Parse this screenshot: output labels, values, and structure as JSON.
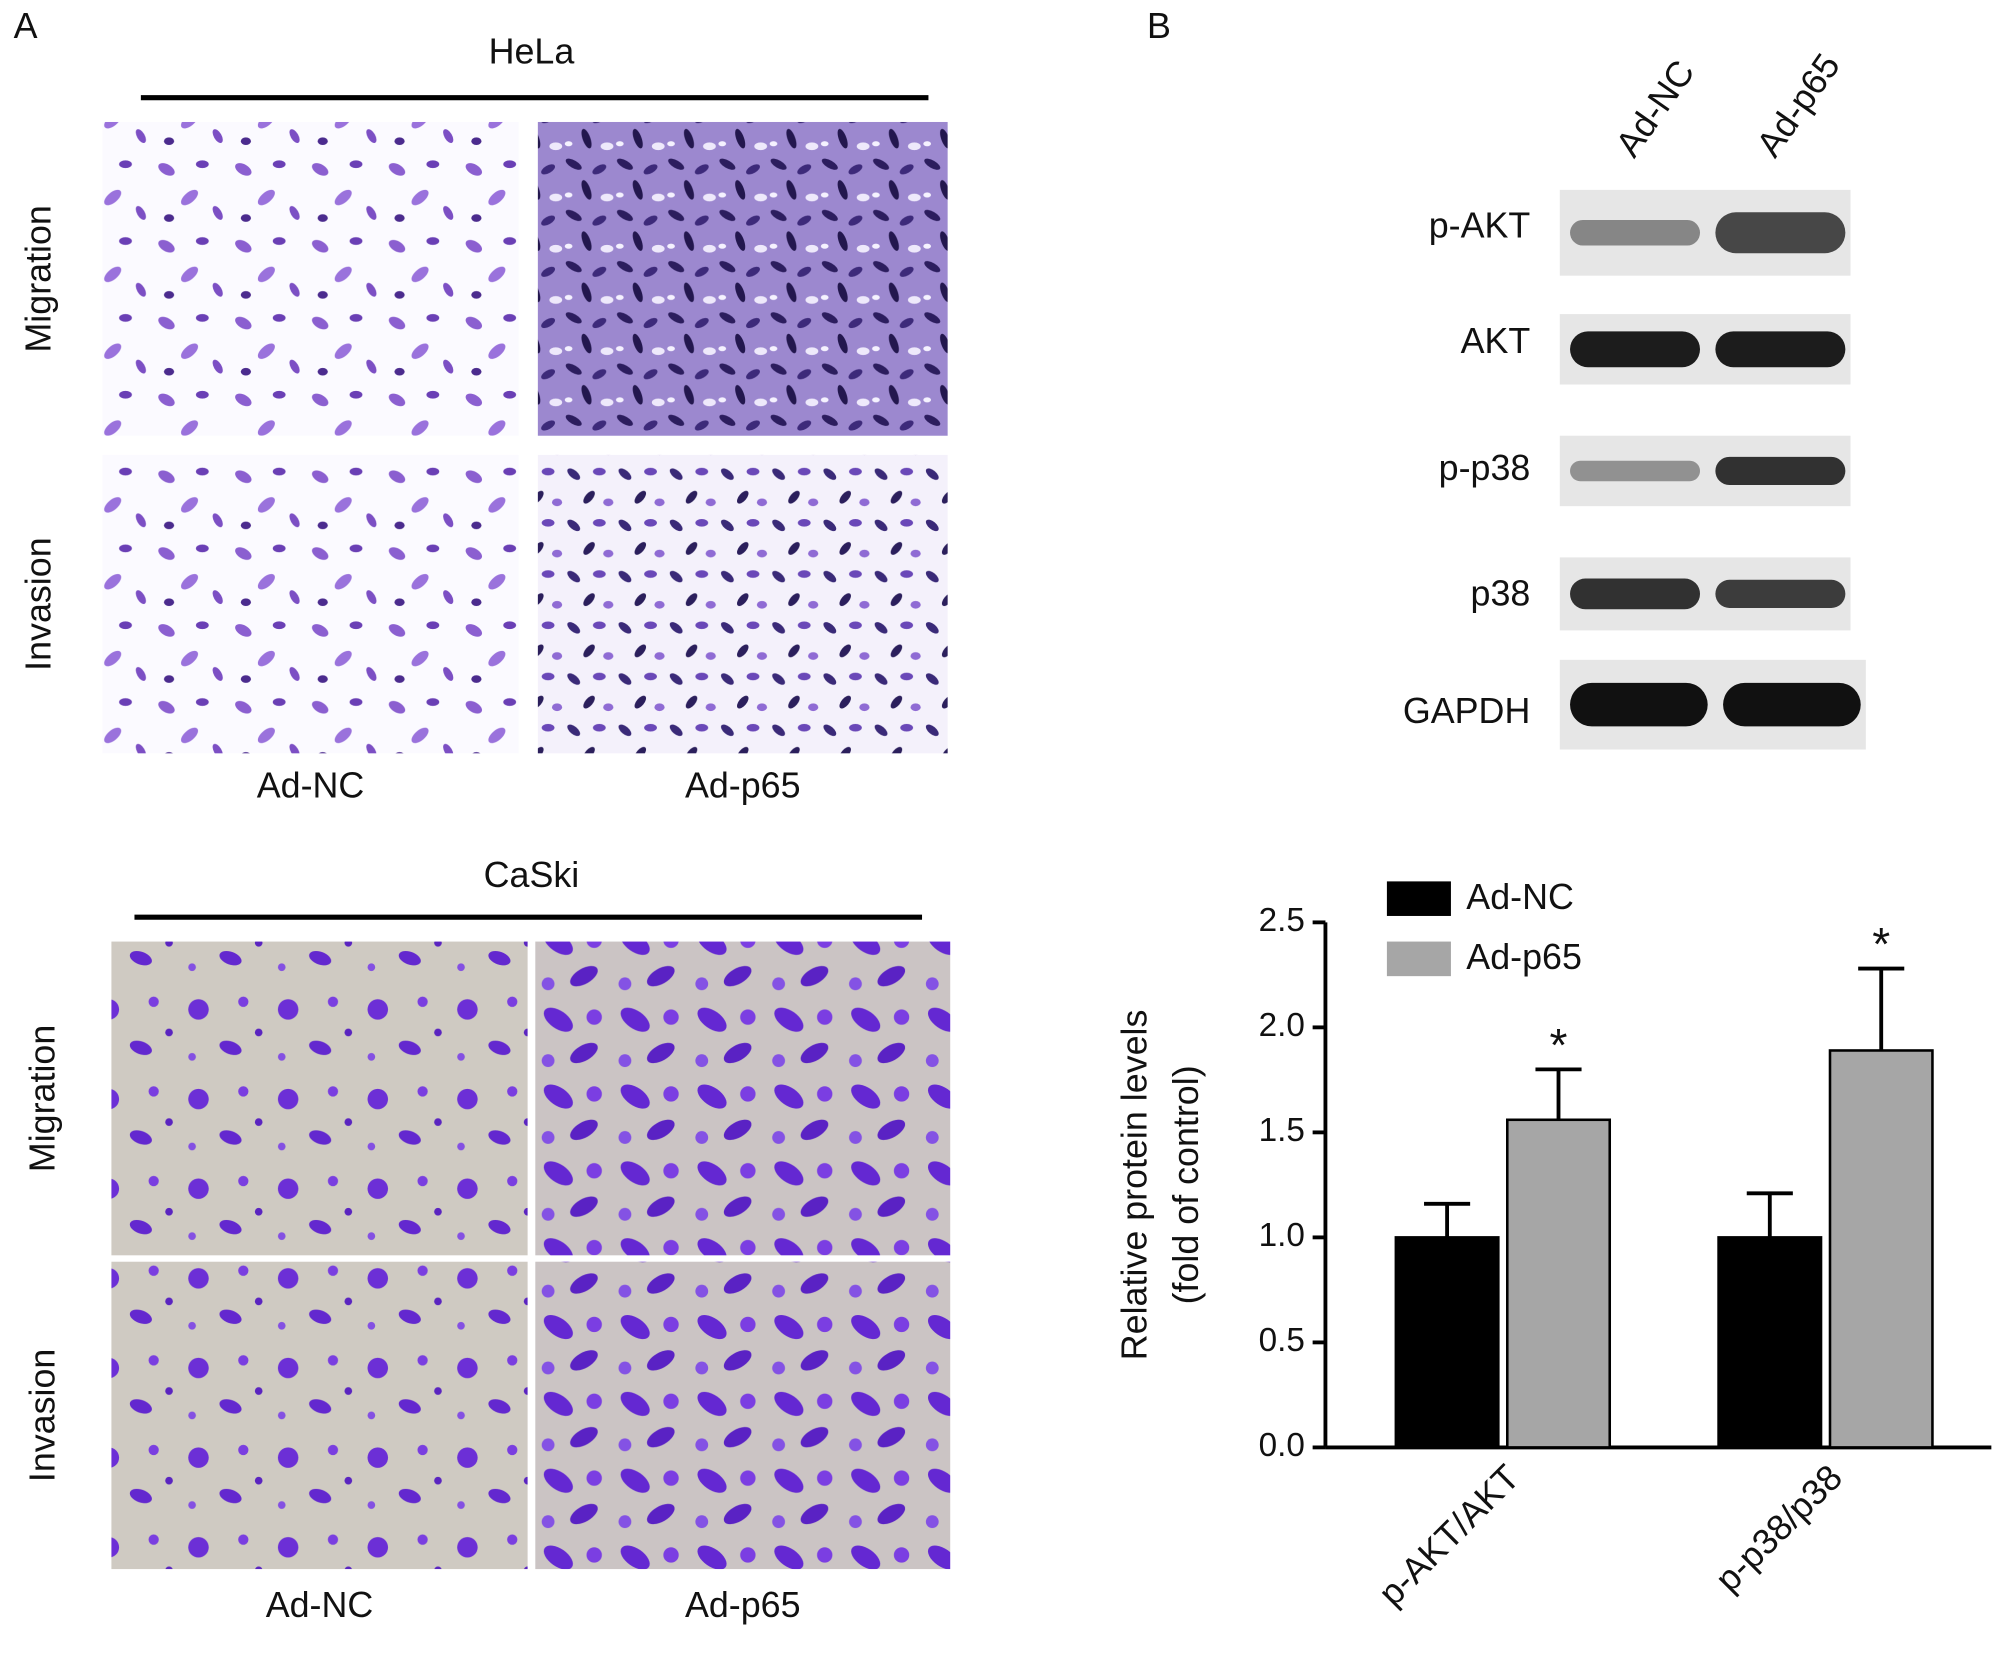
{
  "panel_labels": [
    "A",
    "B"
  ],
  "panel_a": {
    "groups": [
      {
        "title": "HeLa",
        "rows": [
          "Migration",
          "Invasion"
        ],
        "columns": [
          "Ad-NC",
          "Ad-p65"
        ]
      },
      {
        "title": "CaSki",
        "rows": [
          "Migration",
          "Invasion"
        ],
        "columns": [
          "Ad-NC",
          "Ad-p65"
        ]
      }
    ]
  },
  "blot": {
    "columns": [
      "Ad-NC",
      "Ad-p65"
    ],
    "rows": [
      "p-AKT",
      "AKT",
      "p-p38",
      "p38",
      "GAPDH"
    ]
  },
  "chart_data": {
    "type": "bar",
    "ylabel": [
      "Relative protein levels",
      "(fold of control)"
    ],
    "categories": [
      "p-AKT/AKT",
      "p-p38/p38"
    ],
    "series": [
      {
        "name": "Ad-NC",
        "color": "#000000",
        "values": [
          1.0,
          1.0
        ],
        "errors": [
          0.16,
          0.21
        ]
      },
      {
        "name": "Ad-p65",
        "color": "#a6a6a6",
        "values": [
          1.56,
          1.89
        ],
        "errors": [
          0.24,
          0.39
        ],
        "annotations": [
          "*",
          "*"
        ]
      }
    ],
    "ylim": [
      0,
      2.5
    ],
    "yticks": [
      {
        "value": 0,
        "label": "0.0"
      },
      0.5,
      {
        "value": 1,
        "label": "1.0"
      },
      1.5,
      {
        "value": 2,
        "label": "2.0"
      },
      2.5
    ],
    "legend": "upper-left"
  }
}
